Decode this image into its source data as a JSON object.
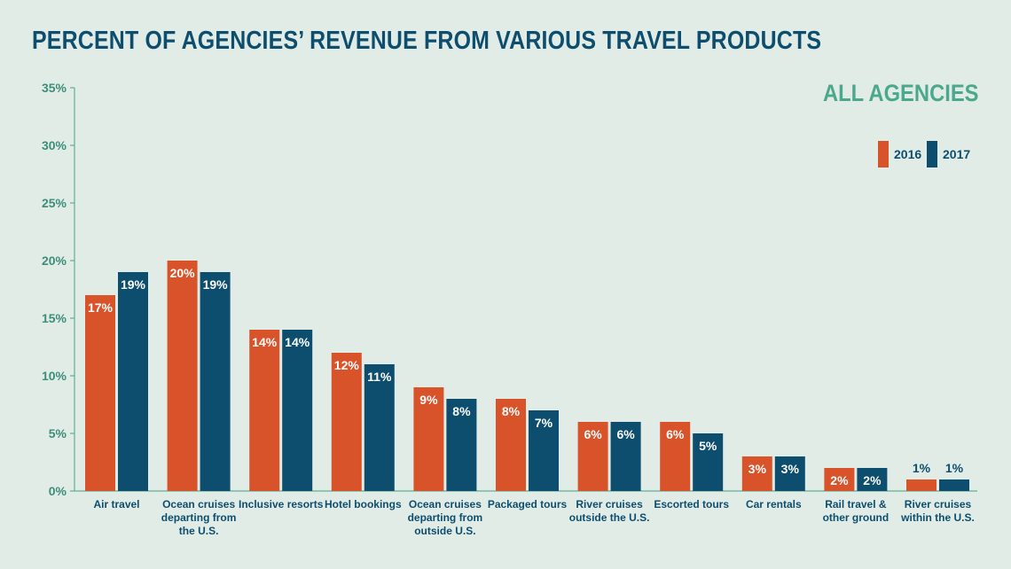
{
  "chart_data": {
    "type": "bar",
    "title": "PERCENT OF AGENCIES’ REVENUE FROM VARIOUS TRAVEL PRODUCTS",
    "subtitle": "ALL AGENCIES",
    "categories": [
      [
        "Air travel"
      ],
      [
        "Ocean cruises",
        "departing from",
        "the U.S."
      ],
      [
        "Inclusive resorts"
      ],
      [
        "Hotel bookings"
      ],
      [
        "Ocean cruises",
        "departing from",
        "outside U.S."
      ],
      [
        "Packaged tours"
      ],
      [
        "River cruises",
        "outside the U.S."
      ],
      [
        "Escorted tours"
      ],
      [
        "Car rentals"
      ],
      [
        "Rail travel &",
        "other ground"
      ],
      [
        "River cruises",
        "within the U.S."
      ]
    ],
    "series": [
      {
        "name": "2016",
        "color": "#d9532a",
        "values": [
          17,
          20,
          14,
          12,
          9,
          8,
          6,
          6,
          3,
          2,
          1
        ]
      },
      {
        "name": "2017",
        "color": "#0d4e6e",
        "values": [
          19,
          19,
          14,
          11,
          8,
          7,
          6,
          5,
          3,
          2,
          1
        ]
      }
    ],
    "ylim": [
      0,
      35
    ],
    "yticks": [
      "0%",
      "5%",
      "10%",
      "15%",
      "20%",
      "25%",
      "30%",
      "35%"
    ],
    "value_suffix": "%",
    "grid": false,
    "legend_position": "top-right"
  }
}
